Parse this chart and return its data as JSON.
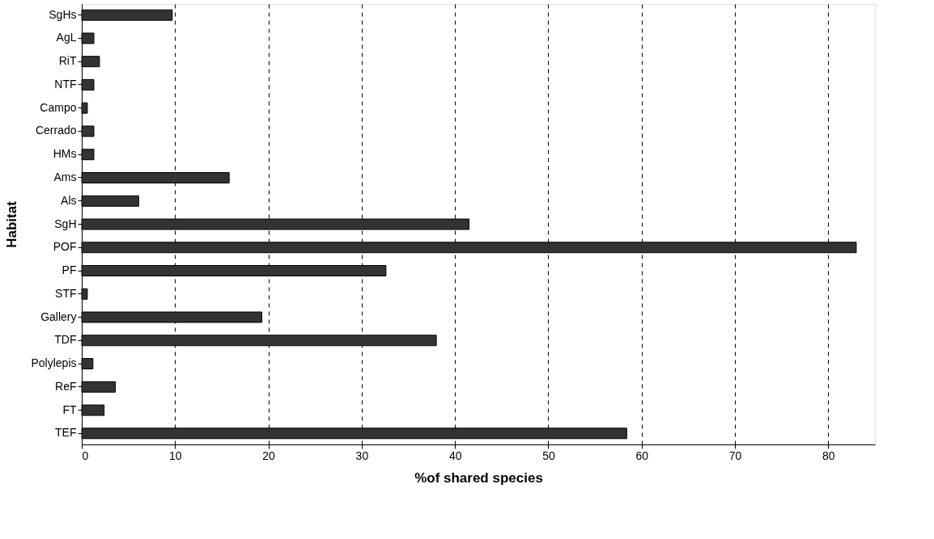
{
  "chart_data": {
    "type": "bar",
    "orientation": "horizontal",
    "xlabel": "%of shared species",
    "ylabel": "Habitat",
    "categories": [
      "SgHs",
      "AgL",
      "RiT",
      "NTF",
      "Campo",
      "Cerrado",
      "HMs",
      "Ams",
      "Als",
      "SgH",
      "POF",
      "PF",
      "STF",
      "Gallery",
      "TDF",
      "Polylepis",
      "ReF",
      "FT",
      "TEF"
    ],
    "values": [
      9.7,
      1.3,
      1.9,
      1.3,
      0.6,
      1.3,
      1.3,
      15.8,
      6.1,
      41.5,
      83.0,
      32.6,
      0.6,
      19.3,
      38.0,
      1.2,
      3.6,
      2.4,
      58.4
    ],
    "color": "#333333",
    "xlim": [
      0,
      85
    ],
    "xticks": [
      0,
      10,
      20,
      30,
      40,
      50,
      60,
      70,
      80
    ],
    "grid": "x",
    "line_style": "dashed"
  }
}
